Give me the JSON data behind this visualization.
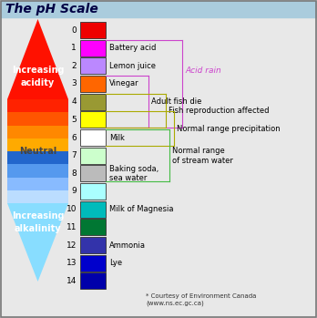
{
  "title": "The pH Scale",
  "title_bg": "#aaccdd",
  "main_bg": "#e8e8e8",
  "ph_colors": [
    "#ee0000",
    "#ff00ff",
    "#bb88ff",
    "#ff6600",
    "#999933",
    "#ffff00",
    "#ffffff",
    "#ccffcc",
    "#bbbbbb",
    "#aaffff",
    "#00bbbb",
    "#007733",
    "#3333aa",
    "#0000cc",
    "#0000aa"
  ],
  "ph_labels": [
    "0",
    "1",
    "2",
    "3",
    "4",
    "5",
    "6",
    "7",
    "8",
    "9",
    "10",
    "11",
    "12",
    "13",
    "14"
  ],
  "substances": {
    "0": "",
    "1": "Battery acid",
    "2": "Lemon juice",
    "3": "Vinegar",
    "4": "",
    "5": "",
    "6": "Milk",
    "7": "",
    "8": "Baking soda,\nsea water",
    "9": "",
    "10": "Milk of Magnesia",
    "11": "",
    "12": "Ammonia",
    "13": "Lye",
    "14": ""
  },
  "increasing_acidity_text": "Increasing\nacidity",
  "neutral_text": "Neutral",
  "increasing_alkalinity_text": "Increasing\nalkalinity",
  "acid_rain_text": "Acid rain",
  "adult_fish_die": "Adult fish die",
  "fish_repro": "Fish reproduction affected",
  "normal_precip": "Normal range precipitation",
  "normal_stream": "Normal range\nof stream water",
  "courtesy": "* Courtesy of Environment Canada\n(www.ns.ec.gc.ca)",
  "acid_rain_color": "#cc44cc",
  "adult_fish_color": "#cc44cc",
  "fish_repro_color": "#aaaa00",
  "normal_precip_color": "#aaaa00",
  "normal_stream_color": "#44bb44"
}
